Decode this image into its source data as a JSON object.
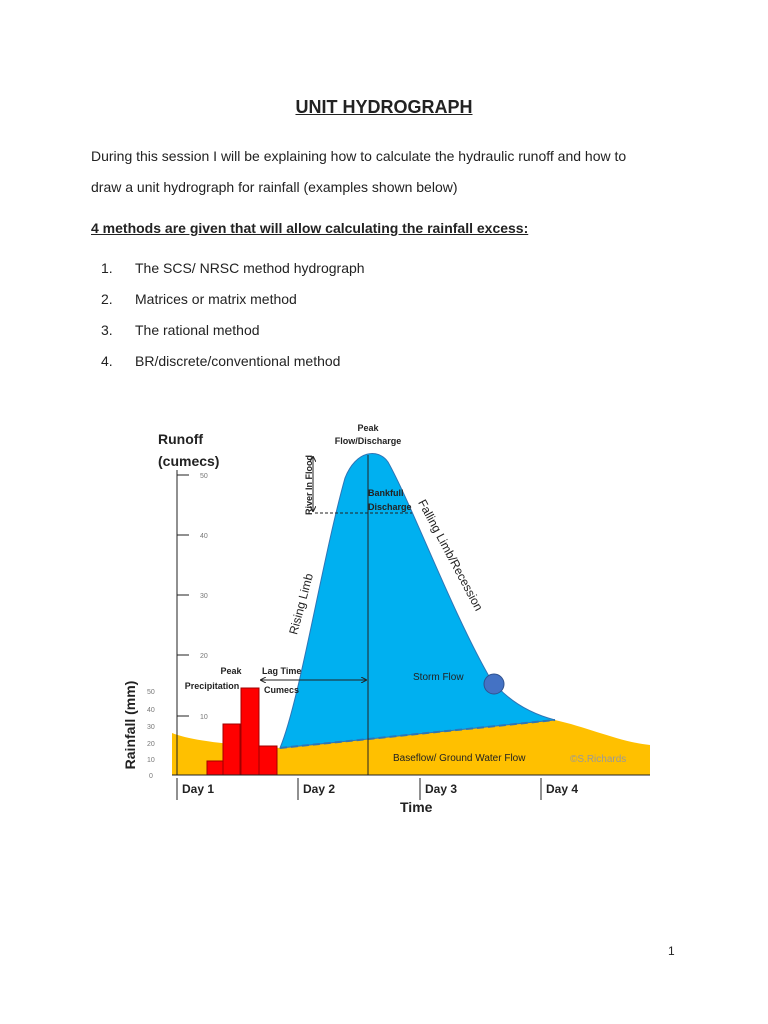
{
  "title": "UNIT HYDROGRAPH",
  "intro": [
    "During this session I will be explaining how to calculate the hydraulic runoff and how to",
    "draw a unit hydrograph for rainfall (examples shown below)"
  ],
  "heading": "4 methods are given that will allow calculating the rainfall excess:",
  "list": [
    {
      "number": "1.",
      "text": "The SCS/ NRSC method hydrograph"
    },
    {
      "number": "2.",
      "text": "Matrices or matrix method"
    },
    {
      "number": "3.",
      "text": "The rational method"
    },
    {
      "number": "4.",
      "text": "BR/discrete/conventional method"
    }
  ],
  "figure": {
    "runoff_label": [
      "Runoff",
      "(cumecs)"
    ],
    "runoff_ticks": [
      "50",
      "40",
      "30",
      "20",
      "10"
    ],
    "rainfall_label": "Rainfall (mm)",
    "rainfall_ticks": [
      "50",
      "40",
      "30",
      "20",
      "10",
      "0"
    ],
    "days": [
      "Day 1",
      "Day 2",
      "Day 3",
      "Day 4"
    ],
    "x_label": "Time",
    "peak_flow": [
      "Peak",
      "Flow/Discharge"
    ],
    "river_in_flood": "River In Flood",
    "bankfull": [
      "Bankfull",
      "Discharge"
    ],
    "falling_limb": "Falling Limb/Recession",
    "rising_limb": "Rising Limb",
    "peak_precipitation": [
      "Peak",
      "Precipitation"
    ],
    "lag_time": [
      "Lag Time",
      "Cumecs"
    ],
    "storm_flow": "Storm Flow",
    "baseflow": "Baseflow/ Ground Water Flow",
    "credit": "©S.Richards"
  },
  "page_number": "1"
}
